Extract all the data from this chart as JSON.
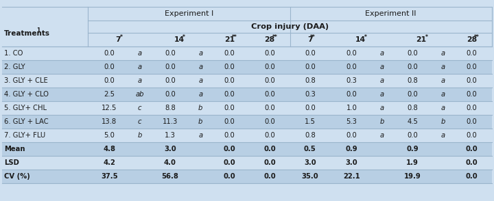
{
  "title_exp1": "Experiment I",
  "title_exp2": "Experiment II",
  "subtitle": "Crop injury (DAA)",
  "treatments": [
    "1. CO",
    "2. GLY",
    "3. GLY + CLE",
    "4. GLY + CLO",
    "5. GLY+ CHL",
    "6. GLY + LAC",
    "7. GLY+ FLU",
    "Mean",
    "LSD",
    "CV (%)"
  ],
  "data": [
    [
      "0.0",
      "a",
      "0.0",
      "a",
      "0.0",
      "0.0",
      "0.0",
      "0.0",
      "a",
      "0.0",
      "a",
      "0.0"
    ],
    [
      "0.0",
      "a",
      "0.0",
      "a",
      "0.0",
      "0.0",
      "0.0",
      "0.0",
      "a",
      "0.0",
      "a",
      "0.0"
    ],
    [
      "0.0",
      "a",
      "0.0",
      "a",
      "0.0",
      "0.0",
      "0.8",
      "0.3",
      "a",
      "0.8",
      "a",
      "0.0"
    ],
    [
      "2.5",
      "ab",
      "0.0",
      "a",
      "0.0",
      "0.0",
      "0.3",
      "0.0",
      "a",
      "0.0",
      "a",
      "0.0"
    ],
    [
      "12.5",
      "c",
      "8.8",
      "b",
      "0.0",
      "0.0",
      "0.0",
      "1.0",
      "a",
      "0.8",
      "a",
      "0.0"
    ],
    [
      "13.8",
      "c",
      "11.3",
      "b",
      "0.0",
      "0.0",
      "1.5",
      "5.3",
      "b",
      "4.5",
      "b",
      "0.0"
    ],
    [
      "5.0",
      "b",
      "1.3",
      "a",
      "0.0",
      "0.0",
      "0.8",
      "0.0",
      "a",
      "0.0",
      "a",
      "0.0"
    ],
    [
      "4.8",
      "",
      "3.0",
      "",
      "0.0",
      "0.0",
      "0.5",
      "0.9",
      "",
      "0.9",
      "",
      "0.0"
    ],
    [
      "4.2",
      "",
      "4.0",
      "",
      "0.0",
      "0.0",
      "3.0",
      "3.0",
      "",
      "1.9",
      "",
      "0.0"
    ],
    [
      "37.5",
      "",
      "56.8",
      "",
      "0.0",
      "0.0",
      "35.0",
      "22.1",
      "",
      "19.9",
      "",
      "0.0"
    ]
  ],
  "col_labels": [
    "7*",
    "14*",
    "21**",
    "28**",
    "7**",
    "14*",
    "21*",
    "28**"
  ],
  "col_stars": [
    "*",
    "*",
    "**",
    "**",
    "**",
    "*",
    "*",
    "**"
  ],
  "col_nums": [
    "7",
    "14",
    "21",
    "28",
    "7",
    "14",
    "21",
    "28"
  ],
  "bg_light": "#cfe0f0",
  "bg_dark": "#b8cfe4",
  "line_color": "#9ab5cc",
  "text_dark": "#1a1a1a"
}
